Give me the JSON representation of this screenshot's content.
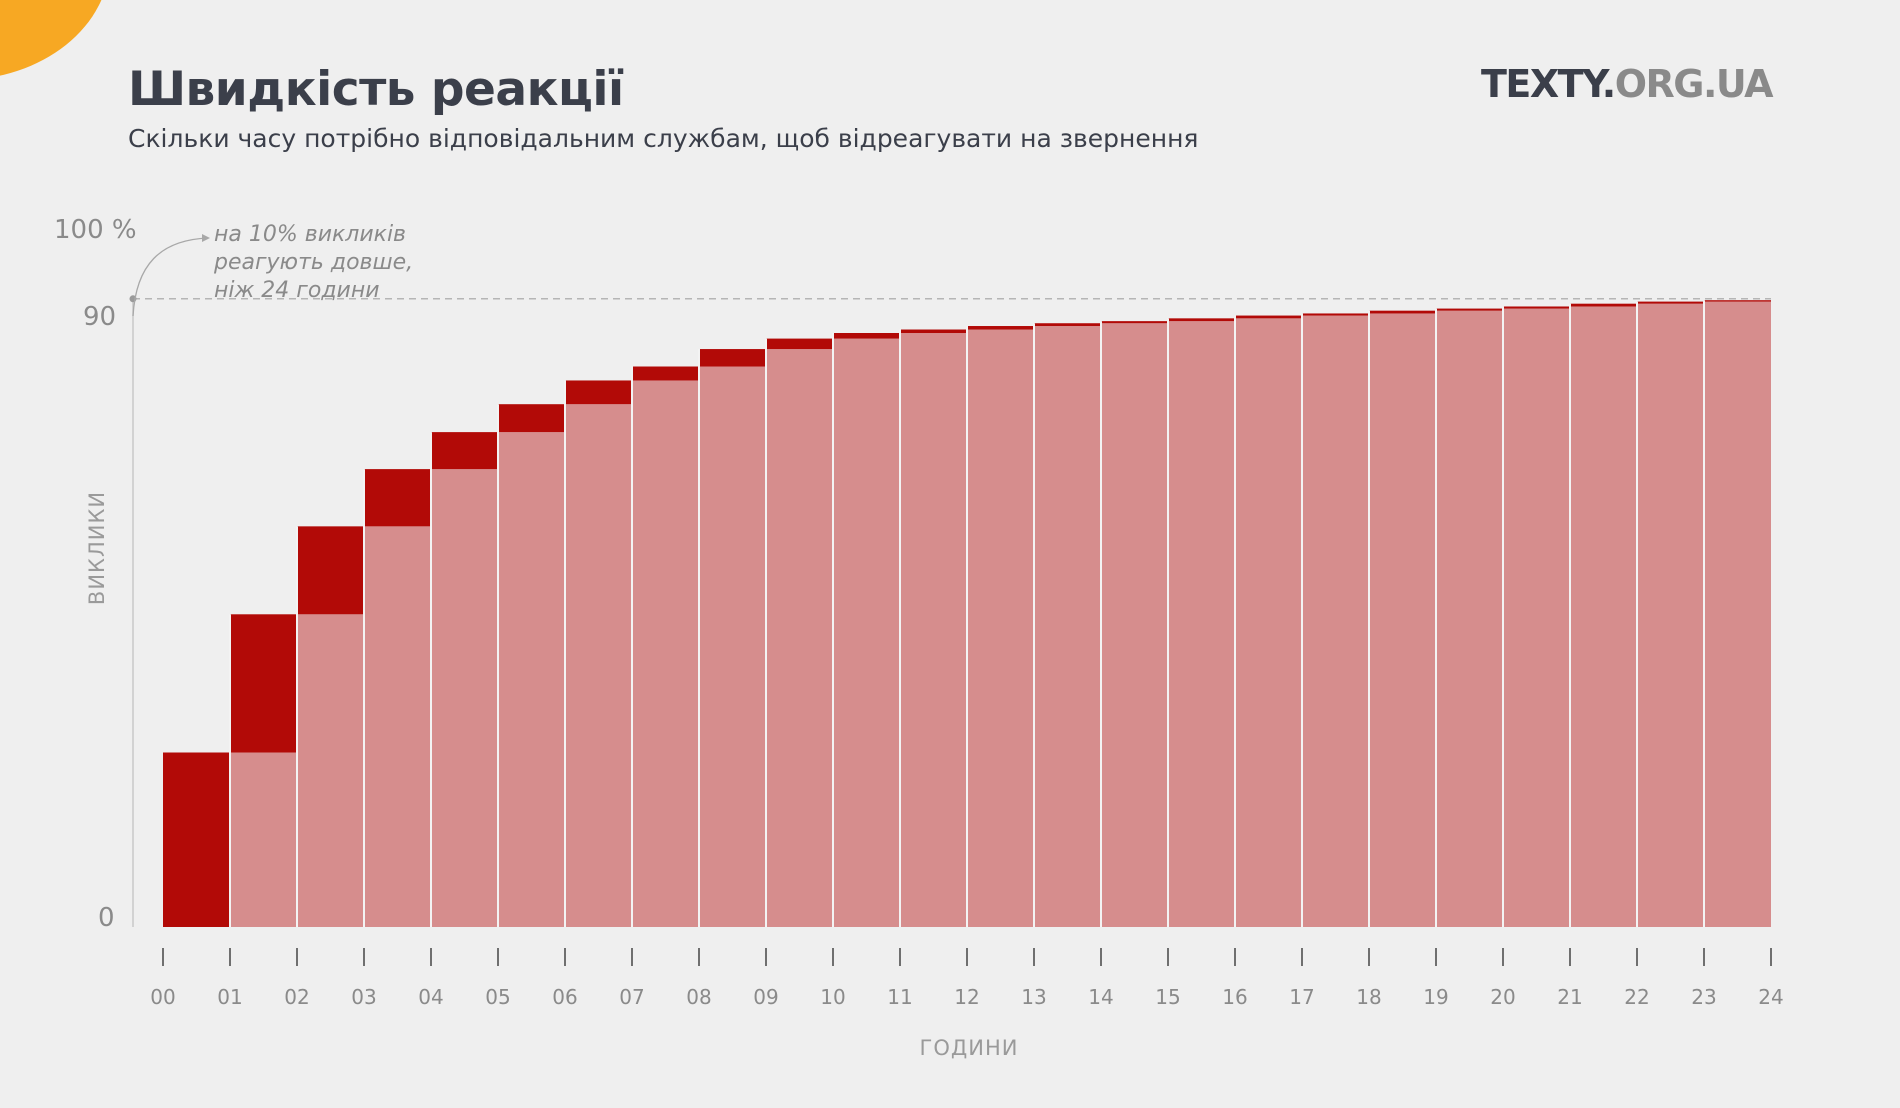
{
  "header": {
    "title": "Швидкість реакції",
    "subtitle": "Скільки часу потрібно відповідальним службам, щоб відреагувати на звернення",
    "logo_main": "TEXTY.",
    "logo_suffix": "ORG.UA"
  },
  "colors": {
    "cumulative": "#d68d8d",
    "increment": "#b20a07",
    "accent": "#f7a823"
  },
  "chart_data": {
    "type": "bar",
    "ylabel": "ВИКЛИКИ",
    "xlabel": "ГОДИНИ",
    "ylim": [
      0,
      100
    ],
    "y_ticks": [
      {
        "value": 0,
        "label": "0"
      },
      {
        "value": 90,
        "label": "90"
      },
      {
        "value": 100,
        "label": "100 %"
      }
    ],
    "x_ticks": [
      "00",
      "01",
      "02",
      "03",
      "04",
      "05",
      "06",
      "07",
      "08",
      "09",
      "10",
      "11",
      "12",
      "13",
      "14",
      "15",
      "16",
      "17",
      "18",
      "19",
      "20",
      "21",
      "22",
      "23",
      "24"
    ],
    "reference_line": {
      "value": 90
    },
    "annotation": [
      "на 10% викликів",
      "реагують довше,",
      "ніж 24 години"
    ],
    "series": [
      {
        "values": [
          25.0,
          44.8,
          57.4,
          65.6,
          70.9,
          74.9,
          78.3,
          80.3,
          82.8,
          84.3,
          85.1,
          85.6,
          86.1,
          86.5,
          86.8,
          87.2,
          87.6,
          87.9,
          88.3,
          88.6,
          88.9,
          89.3,
          89.6,
          89.8
        ]
      }
    ]
  }
}
